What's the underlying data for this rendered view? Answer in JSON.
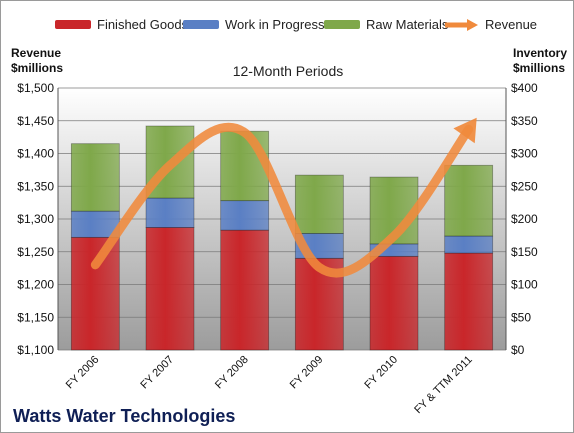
{
  "legend": [
    {
      "label": "Finished Goods",
      "color": "#c9262a"
    },
    {
      "label": "Work in Progress",
      "color": "#5a7fc4"
    },
    {
      "label": "Raw Materials",
      "color": "#7fa84a"
    },
    {
      "label": "Revenue",
      "color": "#f08a3c"
    }
  ],
  "left_axis_title": [
    "Revenue",
    "$millions"
  ],
  "right_axis_title": [
    "Inventory",
    "$millions"
  ],
  "subtitle": "12-Month Periods",
  "company": "Watts Water Technologies",
  "chart_data": {
    "type": "bar",
    "stacked": true,
    "title": "12-Month Periods",
    "categories": [
      "FY 2006",
      "FY 2007",
      "FY 2008",
      "FY 2009",
      "FY 2010",
      "FY & TTM 2011"
    ],
    "series": [
      {
        "name": "Finished Goods",
        "axis": "right",
        "color": "#c9262a",
        "values": [
          172,
          187,
          183,
          140,
          143,
          148
        ]
      },
      {
        "name": "Work in Progress",
        "axis": "right",
        "color": "#5a7fc4",
        "values": [
          40,
          45,
          45,
          38,
          19,
          26
        ]
      },
      {
        "name": "Raw Materials",
        "axis": "right",
        "color": "#7fa84a",
        "values": [
          103,
          110,
          106,
          89,
          102,
          108
        ]
      },
      {
        "name": "Revenue",
        "axis": "left",
        "type": "line",
        "color": "#f08a3c",
        "values": [
          1230,
          1382,
          1432,
          1226,
          1274,
          1437
        ]
      }
    ],
    "left_axis": {
      "title": "Revenue $millions",
      "ylim": [
        1100,
        1500
      ],
      "ticks": [
        "$1,100",
        "$1,150",
        "$1,200",
        "$1,250",
        "$1,300",
        "$1,350",
        "$1,400",
        "$1,450",
        "$1,500"
      ]
    },
    "right_axis": {
      "title": "Inventory $millions",
      "ylim": [
        0,
        400
      ],
      "ticks": [
        "$0",
        "$50",
        "$100",
        "$150",
        "$200",
        "$250",
        "$300",
        "$350",
        "$400"
      ]
    },
    "grid": true,
    "legend_position": "top"
  }
}
